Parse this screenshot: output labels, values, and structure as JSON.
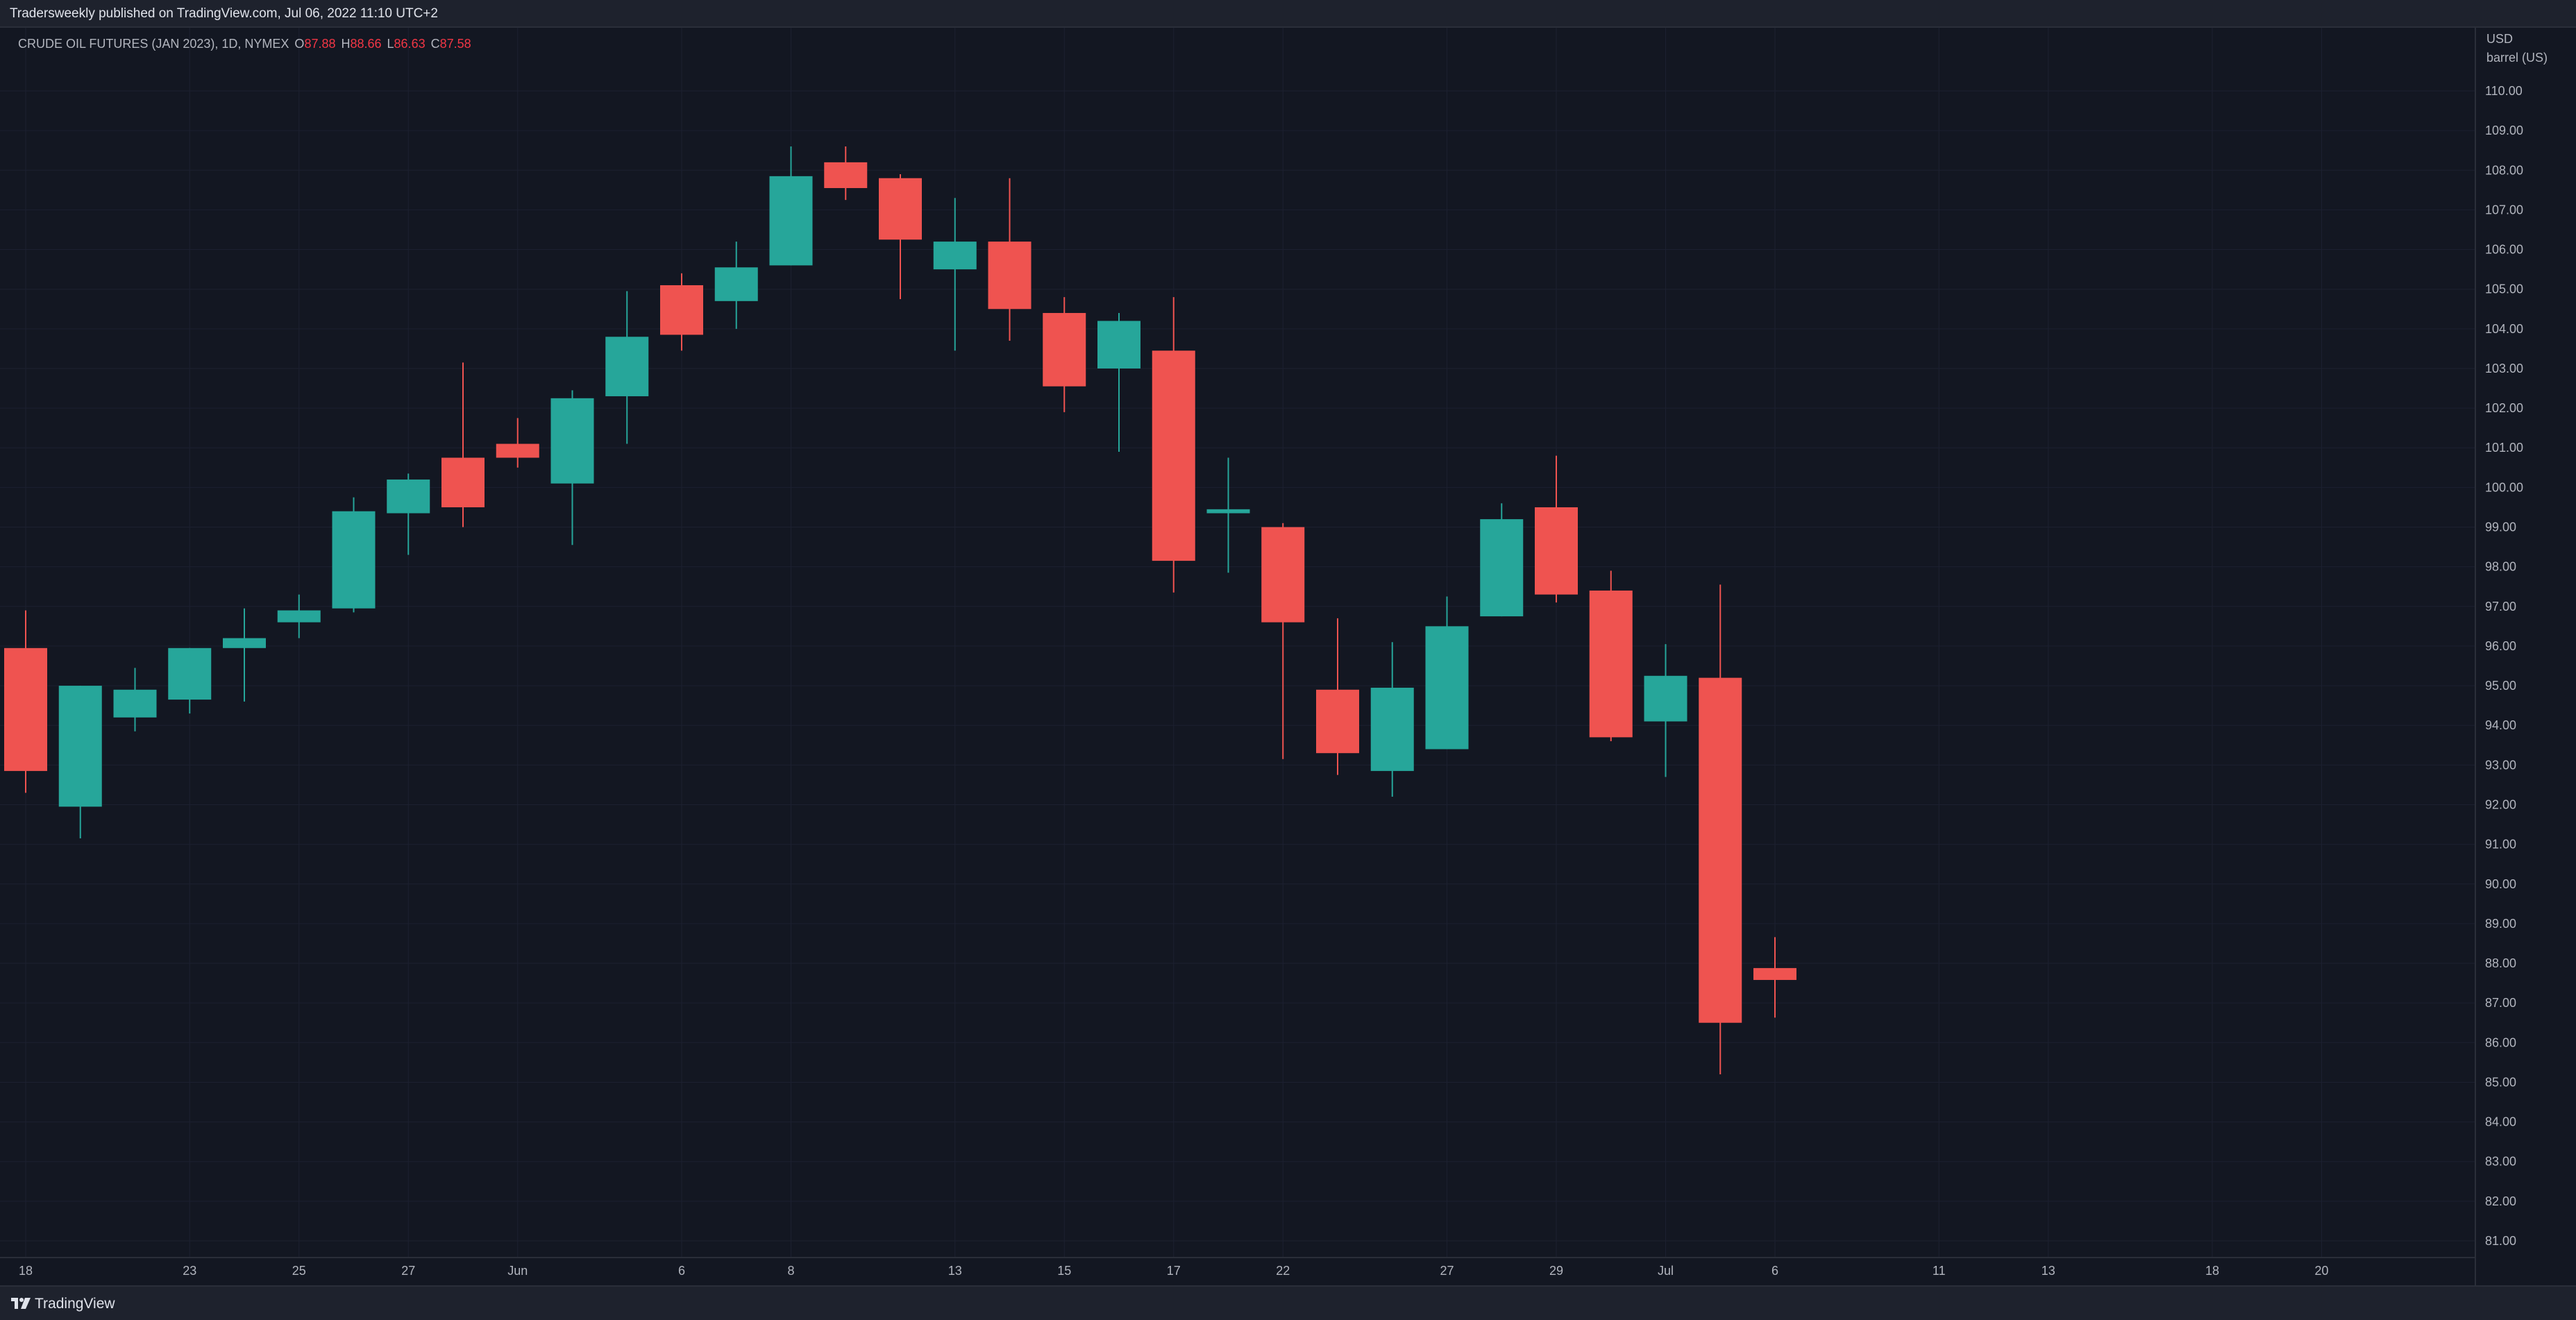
{
  "header": {
    "publisher_text": "Tradersweekly published on TradingView.com, Jul 06, 2022 11:10 UTC+2"
  },
  "legend": {
    "symbol": "CRUDE OIL FUTURES (JAN 2023), 1D, NYMEX",
    "open_label": "O",
    "open": "87.88",
    "high_label": "H",
    "high": "88.66",
    "low_label": "L",
    "low": "86.63",
    "close_label": "C",
    "close": "87.58"
  },
  "price_axis": {
    "currency": "USD",
    "unit": "barrel (US)"
  },
  "footer": {
    "brand": "TradingView",
    "logo_icon": "tradingview-logo-icon"
  },
  "colors": {
    "background": "#131722",
    "up": "#26a69a",
    "down": "#ef5350",
    "grid": "#1c2030",
    "axis_text": "#b2b5be"
  },
  "chart_data": {
    "type": "candlestick",
    "title": "CRUDE OIL FUTURES (JAN 2023), 1D, NYMEX",
    "ylabel": "USD / barrel (US)",
    "ylim": [
      80.5,
      111.2
    ],
    "grid": true,
    "y_ticks": [
      "110.00",
      "109.00",
      "108.00",
      "107.00",
      "106.00",
      "105.00",
      "104.00",
      "103.00",
      "102.00",
      "101.00",
      "100.00",
      "99.00",
      "98.00",
      "97.00",
      "96.00",
      "95.00",
      "94.00",
      "93.00",
      "92.00",
      "91.00",
      "90.00",
      "89.00",
      "88.00",
      "87.00",
      "86.00",
      "85.00",
      "84.00",
      "83.00",
      "82.00",
      "81.00"
    ],
    "x_ticks": [
      {
        "label": "18",
        "slot": 0
      },
      {
        "label": "23",
        "slot": 3
      },
      {
        "label": "25",
        "slot": 5
      },
      {
        "label": "27",
        "slot": 7
      },
      {
        "label": "Jun",
        "slot": 9
      },
      {
        "label": "6",
        "slot": 12
      },
      {
        "label": "8",
        "slot": 14
      },
      {
        "label": "13",
        "slot": 17
      },
      {
        "label": "15",
        "slot": 19
      },
      {
        "label": "17",
        "slot": 21
      },
      {
        "label": "22",
        "slot": 23
      },
      {
        "label": "27",
        "slot": 26
      },
      {
        "label": "29",
        "slot": 28
      },
      {
        "label": "Jul",
        "slot": 30
      },
      {
        "label": "6",
        "slot": 32
      },
      {
        "label": "11",
        "slot": 35
      },
      {
        "label": "13",
        "slot": 37
      },
      {
        "label": "18",
        "slot": 40
      },
      {
        "label": "20",
        "slot": 42
      }
    ],
    "candles": [
      {
        "date": "May 18",
        "open": 95.95,
        "high": 96.9,
        "low": 92.3,
        "close": 92.85
      },
      {
        "date": "May 19",
        "open": 91.95,
        "high": 95.0,
        "low": 91.15,
        "close": 95.0
      },
      {
        "date": "May 20",
        "open": 94.2,
        "high": 95.45,
        "low": 93.85,
        "close": 94.9
      },
      {
        "date": "May 23",
        "open": 94.65,
        "high": 95.95,
        "low": 94.3,
        "close": 95.95
      },
      {
        "date": "May 24",
        "open": 95.95,
        "high": 96.95,
        "low": 94.6,
        "close": 96.2
      },
      {
        "date": "May 25",
        "open": 96.6,
        "high": 97.3,
        "low": 96.2,
        "close": 96.9
      },
      {
        "date": "May 26",
        "open": 96.95,
        "high": 99.75,
        "low": 96.85,
        "close": 99.4
      },
      {
        "date": "May 27",
        "open": 99.35,
        "high": 100.35,
        "low": 98.3,
        "close": 100.2
      },
      {
        "date": "May 31",
        "open": 100.75,
        "high": 103.15,
        "low": 99.0,
        "close": 99.5
      },
      {
        "date": "Jun 1",
        "open": 101.1,
        "high": 101.75,
        "low": 100.5,
        "close": 100.75
      },
      {
        "date": "Jun 2",
        "open": 100.1,
        "high": 102.45,
        "low": 98.55,
        "close": 102.25
      },
      {
        "date": "Jun 3",
        "open": 102.3,
        "high": 104.95,
        "low": 101.1,
        "close": 103.8
      },
      {
        "date": "Jun 6",
        "open": 105.1,
        "high": 105.4,
        "low": 103.45,
        "close": 103.85
      },
      {
        "date": "Jun 7",
        "open": 104.7,
        "high": 106.2,
        "low": 104.0,
        "close": 105.55
      },
      {
        "date": "Jun 8",
        "open": 105.6,
        "high": 108.6,
        "low": 105.6,
        "close": 107.85
      },
      {
        "date": "Jun 9",
        "open": 108.2,
        "high": 108.6,
        "low": 107.25,
        "close": 107.55
      },
      {
        "date": "Jun 10",
        "open": 107.8,
        "high": 107.9,
        "low": 104.75,
        "close": 106.25
      },
      {
        "date": "Jun 13",
        "open": 105.5,
        "high": 107.3,
        "low": 103.45,
        "close": 106.2
      },
      {
        "date": "Jun 14",
        "open": 106.2,
        "high": 107.8,
        "low": 103.7,
        "close": 104.5
      },
      {
        "date": "Jun 15",
        "open": 104.4,
        "high": 104.8,
        "low": 101.9,
        "close": 102.55
      },
      {
        "date": "Jun 16",
        "open": 103.0,
        "high": 104.4,
        "low": 100.9,
        "close": 104.2
      },
      {
        "date": "Jun 17",
        "open": 103.45,
        "high": 104.8,
        "low": 97.35,
        "close": 98.15
      },
      {
        "date": "Jun 21",
        "open": 99.35,
        "high": 100.75,
        "low": 97.85,
        "close": 99.45
      },
      {
        "date": "Jun 22",
        "open": 99.0,
        "high": 99.1,
        "low": 93.15,
        "close": 96.6
      },
      {
        "date": "Jun 23",
        "open": 94.9,
        "high": 96.7,
        "low": 92.75,
        "close": 93.3
      },
      {
        "date": "Jun 24",
        "open": 92.85,
        "high": 96.1,
        "low": 92.2,
        "close": 94.95
      },
      {
        "date": "Jun 27",
        "open": 93.4,
        "high": 97.25,
        "low": 93.4,
        "close": 96.5
      },
      {
        "date": "Jun 28",
        "open": 96.75,
        "high": 99.6,
        "low": 96.75,
        "close": 99.2
      },
      {
        "date": "Jun 29",
        "open": 99.5,
        "high": 100.8,
        "low": 97.1,
        "close": 97.3
      },
      {
        "date": "Jun 30",
        "open": 97.4,
        "high": 97.9,
        "low": 93.6,
        "close": 93.7
      },
      {
        "date": "Jul 1",
        "open": 94.1,
        "high": 96.05,
        "low": 92.7,
        "close": 95.25
      },
      {
        "date": "Jul 5",
        "open": 95.2,
        "high": 97.55,
        "low": 85.2,
        "close": 86.5
      },
      {
        "date": "Jul 6",
        "open": 87.88,
        "high": 88.66,
        "low": 86.63,
        "close": 87.58
      }
    ]
  }
}
